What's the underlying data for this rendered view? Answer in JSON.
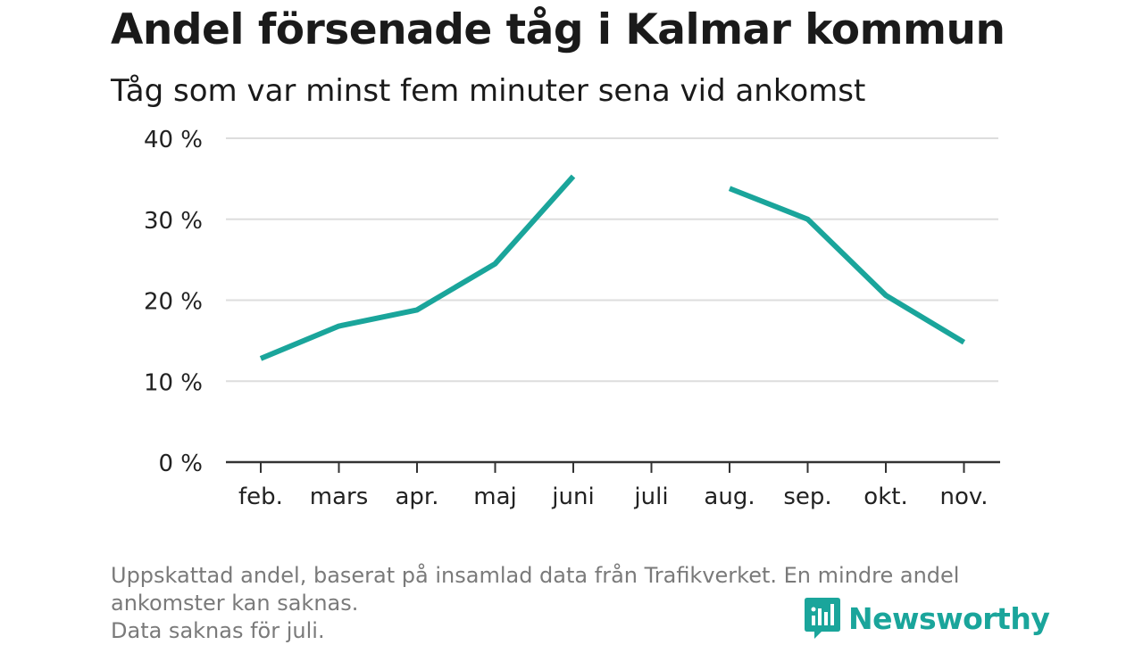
{
  "title": "Andel försenade tåg i Kalmar kommun",
  "subtitle": "Tåg som var minst fem minuter sena vid ankomst",
  "footnote": [
    "Uppskattad andel, baserat på insamlad data från Trafikverket. En mindre andel",
    "ankomster kan saknas.",
    "Data saknas för juli."
  ],
  "brand": {
    "name": "Newsworthy",
    "color": "#1aa59b",
    "icon": "newsworthy-logo-icon"
  },
  "colors": {
    "line": "#1aa59b",
    "grid": "#dddddd",
    "axis": "#333333"
  },
  "chart_data": {
    "type": "line",
    "title": "Andel försenade tåg i Kalmar kommun",
    "subtitle": "Tåg som var minst fem minuter sena vid ankomst",
    "categories": [
      "feb.",
      "mars",
      "apr.",
      "maj",
      "juni",
      "juli",
      "aug.",
      "sep.",
      "okt.",
      "nov."
    ],
    "series": [
      {
        "values": [
          12.8,
          16.8,
          18.8,
          24.5,
          35.3,
          null,
          33.8,
          30.0,
          20.6,
          14.8
        ]
      }
    ],
    "yticks": [
      0,
      10,
      20,
      30,
      40
    ],
    "ytick_labels": [
      "0 %",
      "10 %",
      "20 %",
      "30 %",
      "40 %"
    ],
    "ylim": [
      0,
      40
    ],
    "grid": true,
    "legend": "none"
  }
}
